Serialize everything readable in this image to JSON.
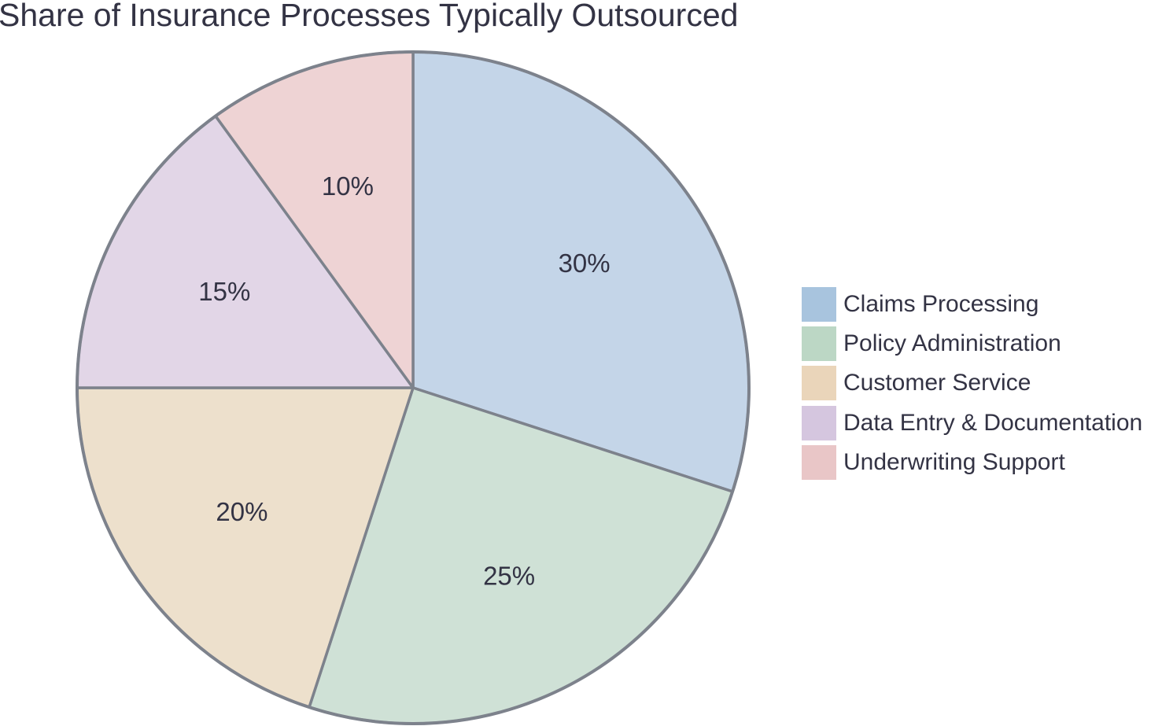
{
  "chart_data": {
    "type": "pie",
    "title": "Share of Insurance Processes Typically Outsourced",
    "categories": [
      "Claims Processing",
      "Policy Administration",
      "Customer Service",
      "Data Entry & Documentation",
      "Underwriting Support"
    ],
    "values": [
      30,
      25,
      20,
      15,
      10
    ],
    "value_labels": [
      "30%",
      "25%",
      "20%",
      "15%",
      "10%"
    ],
    "start_angle": "12 o'clock",
    "direction": "clockwise",
    "legend_position": "right",
    "slice_colors": [
      "#c4d5e8",
      "#cfe1d6",
      "#ede0cc",
      "#e2d6e7",
      "#eed3d4"
    ],
    "legend_colors": [
      "#a8c4de",
      "#bcd7c5",
      "#ead5ba",
      "#d5c6df",
      "#e9c6c7"
    ],
    "border_color": "#7d828c"
  }
}
